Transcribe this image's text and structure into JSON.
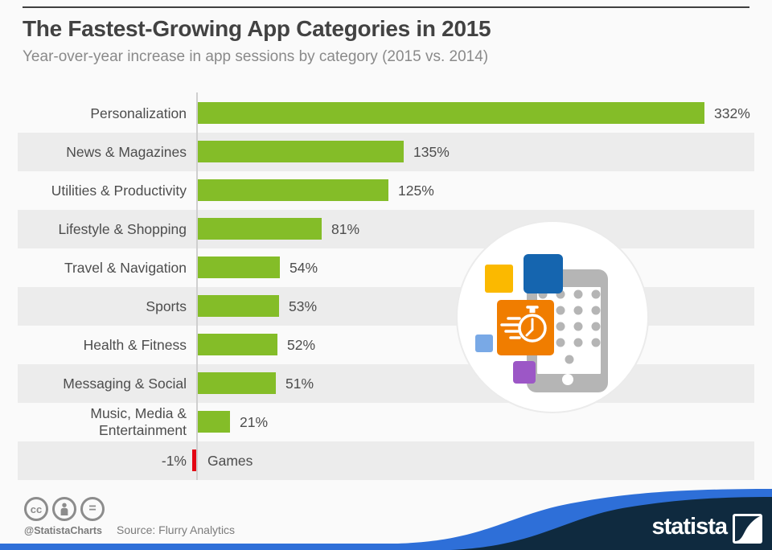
{
  "header": {
    "title": "The Fastest-Growing App Categories in 2015",
    "subtitle": "Year-over-year increase in app sessions by category (2015 vs. 2014)"
  },
  "chart_data": {
    "type": "bar",
    "orientation": "horizontal",
    "title": "The Fastest-Growing App Categories in 2015",
    "subtitle": "Year-over-year increase in app sessions by category (2015 vs. 2014)",
    "unit": "%",
    "categories": [
      "Personalization",
      "News & Magazines",
      "Utilities & Productivity",
      "Lifestyle & Shopping",
      "Travel & Navigation",
      "Sports",
      "Health & Fitness",
      "Messaging & Social",
      "Music, Media & Entertainment",
      "Games"
    ],
    "values": [
      332,
      135,
      125,
      81,
      54,
      53,
      52,
      51,
      21,
      -1
    ],
    "value_labels": [
      "332%",
      "135%",
      "125%",
      "81%",
      "54%",
      "53%",
      "52%",
      "51%",
      "21%",
      "-1%"
    ],
    "xlim": [
      -5,
      350
    ],
    "grid": false,
    "legend": "none",
    "bar_color": "#84BD28",
    "negative_color": "#E30613",
    "row_stripe_color": "#ECECEC"
  },
  "illustration": {
    "name": "mobile-app-growth-illustration",
    "circle_fill": "#FFFFFF",
    "circle_stroke": "#EBEBEB",
    "tablet_gray": "#B5B5B5",
    "square_yellow": "#FBB900",
    "square_blue": "#1565AF",
    "square_orange": "#F07D00",
    "square_lightblue": "#79A9E6",
    "square_purple": "#9C57C6",
    "stopwatch_color": "#FFFFFF"
  },
  "footer": {
    "cc_glyph": "cc",
    "eq_glyph": "=",
    "handle": "@StatistaCharts",
    "source": "Source: Flurry Analytics",
    "brand": "statista"
  },
  "colors": {
    "background": "#FAFAFA",
    "text_dark": "#4D4D4D",
    "text_muted": "#8A8A8A",
    "axis": "#CFCFCF",
    "accent_blue": "#2E6FD8",
    "navy": "#0F2A3F"
  }
}
